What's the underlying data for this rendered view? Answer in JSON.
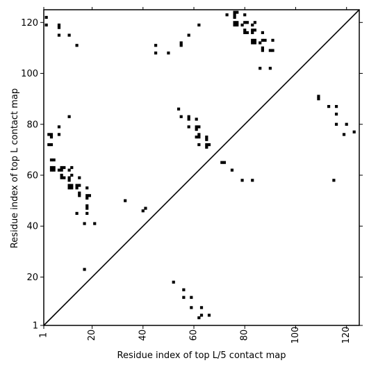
{
  "chart_data": {
    "type": "scatter",
    "title": "",
    "xlabel": "Residue index of top L/5 contact map",
    "ylabel": "Residue index of top L contact map",
    "xlim": [
      1,
      125
    ],
    "ylim": [
      1,
      125
    ],
    "xticks": [
      1,
      20,
      40,
      60,
      80,
      100,
      120
    ],
    "yticks": [
      1,
      20,
      40,
      60,
      80,
      100,
      120
    ],
    "grid": false,
    "marker": "square",
    "marker_color": "#000000",
    "diagonal_color": "#000000",
    "series": [
      {
        "name": "",
        "points": [
          [
            2,
            122
          ],
          [
            2,
            119
          ],
          [
            3,
            76
          ],
          [
            3,
            72
          ],
          [
            4,
            76
          ],
          [
            4,
            75
          ],
          [
            4,
            72
          ],
          [
            4,
            66
          ],
          [
            5,
            66
          ],
          [
            4,
            63
          ],
          [
            5,
            63
          ],
          [
            4,
            62
          ],
          [
            5,
            62
          ],
          [
            7,
            119
          ],
          [
            7,
            118
          ],
          [
            7,
            115
          ],
          [
            7,
            79
          ],
          [
            7,
            76
          ],
          [
            7,
            62
          ],
          [
            8,
            63
          ],
          [
            8,
            62
          ],
          [
            8,
            60
          ],
          [
            8,
            59
          ],
          [
            9,
            63
          ],
          [
            9,
            59
          ],
          [
            11,
            115
          ],
          [
            11,
            83
          ],
          [
            11,
            62
          ],
          [
            11,
            59
          ],
          [
            11,
            58
          ],
          [
            12,
            63
          ],
          [
            12,
            60
          ],
          [
            11,
            56
          ],
          [
            12,
            56
          ],
          [
            11,
            55
          ],
          [
            12,
            55
          ],
          [
            14,
            111
          ],
          [
            14,
            56
          ],
          [
            14,
            55
          ],
          [
            14,
            45
          ],
          [
            15,
            59
          ],
          [
            15,
            56
          ],
          [
            15,
            53
          ],
          [
            15,
            52
          ],
          [
            17,
            41
          ],
          [
            17,
            23
          ],
          [
            18,
            55
          ],
          [
            18,
            52
          ],
          [
            18,
            51
          ],
          [
            18,
            48
          ],
          [
            18,
            47
          ],
          [
            18,
            45
          ],
          [
            19,
            52
          ],
          [
            21,
            41
          ],
          [
            33,
            50
          ],
          [
            40,
            46
          ],
          [
            41,
            47
          ],
          [
            45,
            111
          ],
          [
            45,
            108
          ],
          [
            50,
            108
          ],
          [
            55,
            112
          ],
          [
            55,
            111
          ],
          [
            54,
            86
          ],
          [
            55,
            83
          ],
          [
            58,
            115
          ],
          [
            58,
            83
          ],
          [
            58,
            82
          ],
          [
            58,
            79
          ],
          [
            61,
            82
          ],
          [
            61,
            79
          ],
          [
            61,
            78
          ],
          [
            61,
            75
          ],
          [
            62,
            119
          ],
          [
            62,
            79
          ],
          [
            62,
            76
          ],
          [
            62,
            75
          ],
          [
            62,
            72
          ],
          [
            65,
            75
          ],
          [
            65,
            74
          ],
          [
            65,
            72
          ],
          [
            65,
            71
          ],
          [
            66,
            72
          ],
          [
            71,
            65
          ],
          [
            72,
            65
          ],
          [
            73,
            123
          ],
          [
            75,
            62
          ],
          [
            76,
            124
          ],
          [
            76,
            123
          ],
          [
            76,
            122
          ],
          [
            76,
            120
          ],
          [
            76,
            119
          ],
          [
            77,
            124
          ],
          [
            77,
            120
          ],
          [
            77,
            119
          ],
          [
            79,
            119
          ],
          [
            79,
            58
          ],
          [
            80,
            123
          ],
          [
            80,
            120
          ],
          [
            80,
            117
          ],
          [
            80,
            116
          ],
          [
            81,
            120
          ],
          [
            81,
            116
          ],
          [
            83,
            119
          ],
          [
            83,
            117
          ],
          [
            83,
            116
          ],
          [
            83,
            113
          ],
          [
            83,
            112
          ],
          [
            84,
            120
          ],
          [
            84,
            117
          ],
          [
            84,
            113
          ],
          [
            84,
            112
          ],
          [
            83,
            58
          ],
          [
            86,
            112
          ],
          [
            86,
            102
          ],
          [
            87,
            116
          ],
          [
            87,
            113
          ],
          [
            87,
            110
          ],
          [
            87,
            109
          ],
          [
            88,
            113
          ],
          [
            90,
            109
          ],
          [
            90,
            102
          ],
          [
            91,
            113
          ],
          [
            91,
            109
          ],
          [
            109,
            91
          ],
          [
            109,
            90
          ],
          [
            113,
            87
          ],
          [
            115,
            58
          ],
          [
            116,
            87
          ],
          [
            116,
            84
          ],
          [
            116,
            80
          ],
          [
            119,
            76
          ],
          [
            120,
            80
          ],
          [
            123,
            77
          ],
          [
            52,
            18
          ],
          [
            56,
            15
          ],
          [
            56,
            12
          ],
          [
            59,
            12
          ],
          [
            59,
            8
          ],
          [
            62,
            4
          ],
          [
            63,
            8
          ],
          [
            63,
            5
          ],
          [
            66,
            5
          ]
        ]
      }
    ]
  }
}
